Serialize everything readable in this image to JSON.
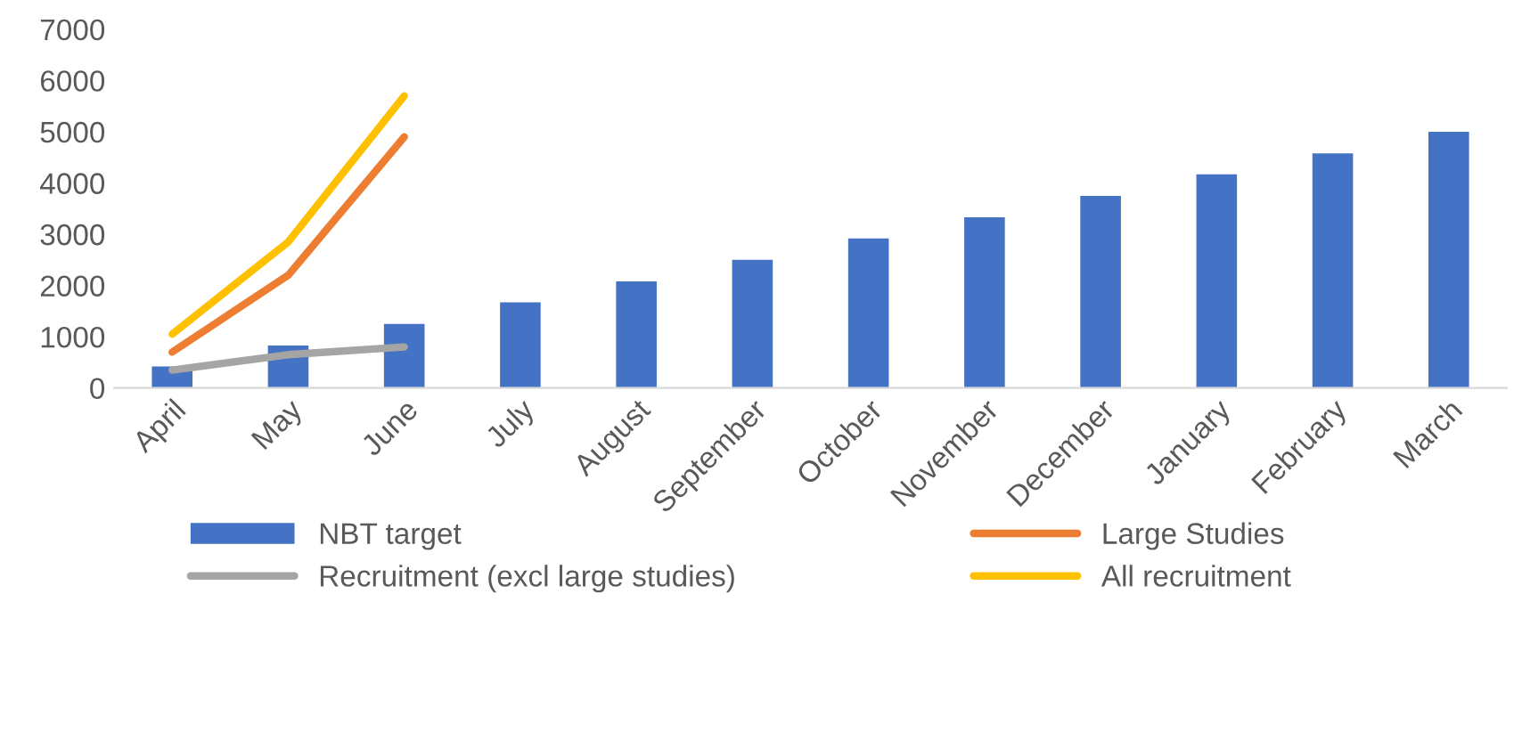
{
  "chart_data": {
    "type": "bar",
    "categories": [
      "April",
      "May",
      "June",
      "July",
      "August",
      "September",
      "October",
      "November",
      "December",
      "January",
      "February",
      "March"
    ],
    "series": [
      {
        "name": "NBT target",
        "color": "#4472c4",
        "values": [
          420,
          830,
          1250,
          1670,
          2080,
          2500,
          2920,
          3330,
          3750,
          4170,
          4580,
          5000
        ]
      },
      {
        "name": "Large Studies",
        "type": "line",
        "color": "#ed7d31",
        "values": [
          700,
          2200,
          4900,
          null,
          null,
          null,
          null,
          null,
          null,
          null,
          null,
          null
        ]
      },
      {
        "name": "Recruitment (excl large studies)",
        "type": "line",
        "color": "#a5a5a5",
        "values": [
          350,
          650,
          800,
          null,
          null,
          null,
          null,
          null,
          null,
          null,
          null,
          null
        ]
      },
      {
        "name": "All recruitment",
        "type": "line",
        "color": "#ffc000",
        "values": [
          1050,
          2850,
          5700,
          null,
          null,
          null,
          null,
          null,
          null,
          null,
          null,
          null
        ]
      }
    ],
    "ylim": [
      0,
      7000
    ],
    "yticks": [
      0,
      1000,
      2000,
      3000,
      4000,
      5000,
      6000,
      7000
    ],
    "grid": false,
    "legend": "bottom",
    "marker": "none",
    "line_style": "solid"
  }
}
